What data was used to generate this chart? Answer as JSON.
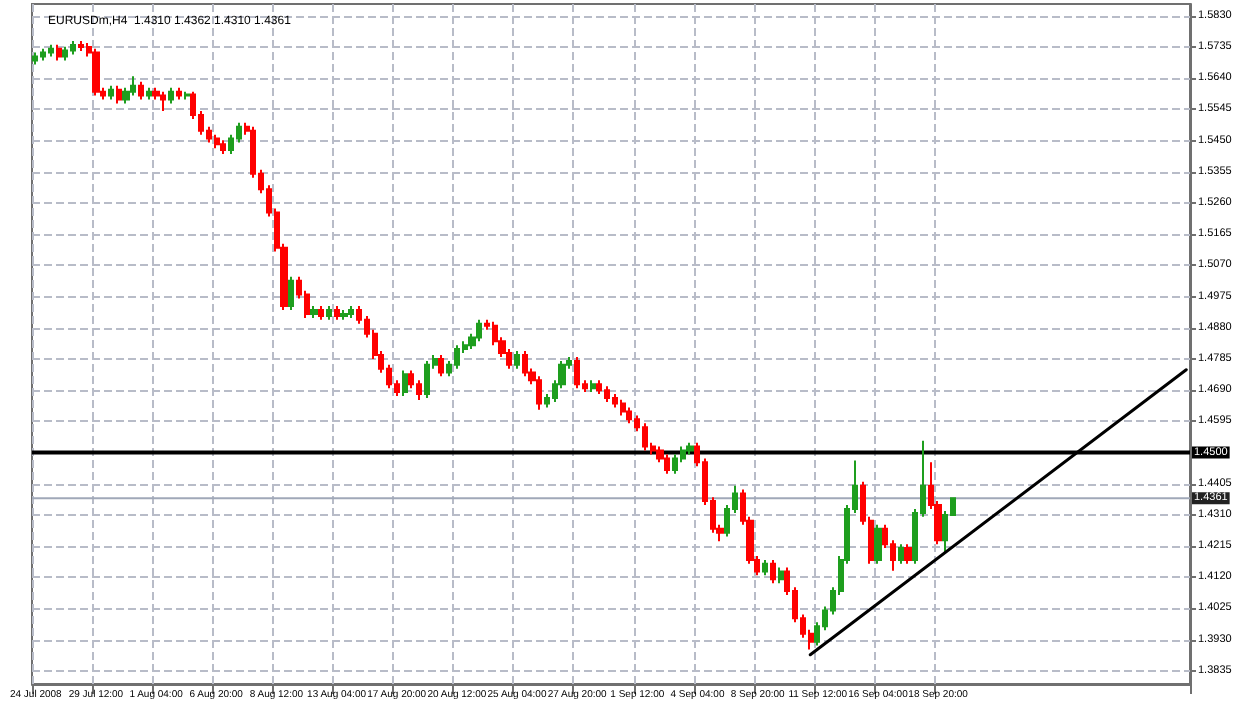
{
  "chart_data": {
    "type": "candlestick",
    "title": "EURUSDm,H4  1.4310 1.4362 1.4310 1.4361",
    "categories": [
      "24 Jul 2008",
      null,
      null,
      null,
      null,
      null,
      null,
      null,
      "29 Jul 12:00",
      null,
      null,
      null,
      null,
      null,
      null,
      null,
      "1 Aug 04:00",
      null,
      null,
      null,
      null,
      null,
      null,
      null,
      "6 Aug 20:00",
      null,
      null,
      null,
      null,
      null,
      null,
      null,
      "8 Aug 12:00",
      null,
      null,
      null,
      null,
      null,
      null,
      null,
      "13 Aug 04:00",
      null,
      null,
      null,
      null,
      null,
      null,
      null,
      "17 Aug 20:00",
      null,
      null,
      null,
      null,
      null,
      null,
      null,
      "20 Aug 12:00",
      null,
      null,
      null,
      null,
      null,
      null,
      null,
      "25 Aug 04:00",
      null,
      null,
      null,
      null,
      null,
      null,
      null,
      "27 Aug 20:00",
      null,
      null,
      null,
      null,
      null,
      null,
      null,
      "1 Sep 12:00",
      null,
      null,
      null,
      null,
      null,
      null,
      null,
      "4 Sep 04:00",
      null,
      null,
      null,
      null,
      null,
      null,
      null,
      "8 Sep 20:00",
      null,
      null,
      null,
      null,
      null,
      null,
      null,
      "11 Sep 12:00",
      null,
      null,
      null,
      null,
      null,
      null,
      null,
      "16 Sep 04:00",
      null,
      null,
      null,
      null,
      null,
      null,
      null,
      "18 Sep 20:00",
      null,
      null,
      null,
      null,
      null,
      null,
      null,
      null,
      null,
      null,
      null,
      null,
      null,
      null,
      null,
      null,
      null,
      null,
      null,
      null,
      null,
      null,
      null,
      null,
      null,
      null,
      null,
      null,
      null,
      null,
      null,
      null,
      null
    ],
    "colors": [
      "#1e9e1e",
      "#1e9e1e",
      "#1e9e1e",
      "#ff0000",
      "#1e9e1e",
      "#1e9e1e",
      "#ff0000",
      "#ff0000",
      "#ff0000",
      "#ff0000",
      "#1e9e1e",
      "#ff0000",
      "#1e9e1e",
      "#1e9e1e",
      "#ff0000",
      "#1e9e1e",
      "#ff0000",
      "#ff0000",
      "#1e9e1e",
      "#ff0000",
      "#1e9e1e",
      "#ff0000",
      "#ff0000",
      "#ff0000",
      "#ff0000",
      "#ff0000",
      "#1e9e1e",
      "#1e9e1e",
      "#ff0000",
      "#ff0000",
      "#ff0000",
      "#ff0000",
      "#ff0000",
      "#ff0000",
      "#1e9e1e",
      "#ff0000",
      "#ff0000",
      "#1e9e1e",
      "#ff0000",
      "#1e9e1e",
      "#ff0000",
      "#1e9e1e",
      "#1e9e1e",
      "#ff0000",
      "#ff0000",
      "#ff0000",
      "#ff0000",
      "#ff0000",
      "#ff0000",
      "#1e9e1e",
      "#ff0000",
      "#ff0000",
      "#1e9e1e",
      "#1e9e1e",
      "#ff0000",
      "#1e9e1e",
      "#1e9e1e",
      "#1e9e1e",
      "#1e9e1e",
      "#1e9e1e",
      "#ff0000",
      "#ff0000",
      "#ff0000",
      "#ff0000",
      "#1e9e1e",
      "#ff0000",
      "#ff0000",
      "#ff0000",
      "#1e9e1e",
      "#1e9e1e",
      "#1e9e1e",
      "#1e9e1e",
      "#ff0000",
      "#ff0000",
      "#1e9e1e",
      "#ff0000",
      "#ff0000",
      "#ff0000",
      "#ff0000",
      "#ff0000",
      "#ff0000",
      "#ff0000",
      "#ff0000",
      "#ff0000",
      "#ff0000",
      "#1e9e1e",
      "#1e9e1e",
      "#1e9e1e",
      "#ff0000",
      "#ff0000",
      "#ff0000",
      "#ff0000",
      "#1e9e1e",
      "#1e9e1e",
      "#ff0000",
      "#ff0000",
      "#ff0000",
      "#1e9e1e",
      "#ff0000",
      "#1e9e1e",
      "#ff0000",
      "#ff0000",
      "#ff0000",
      "#ff0000",
      "#1e9e1e",
      "#1e9e1e",
      "#1e9e1e",
      "#1e9e1e",
      "#1e9e1e",
      "#1e9e1e",
      "#ff0000",
      "#ff0000",
      "#1e9e1e",
      "#ff0000",
      "#ff0000",
      "#1e9e1e",
      "#ff0000",
      "#1e9e1e",
      "#1e9e1e",
      "#ff0000",
      "#ff0000",
      "#1e9e1e",
      "#1e9e1e",
      null,
      null,
      null,
      null,
      null,
      null,
      null,
      null,
      null,
      null,
      null,
      null,
      null,
      null,
      null,
      null,
      null,
      null,
      null,
      null,
      null,
      null,
      null,
      null,
      null,
      null,
      null,
      null,
      null,
      null,
      null
    ],
    "ohlc": [
      [
        1.5694,
        1.5718,
        1.5682,
        1.5706
      ],
      [
        1.5706,
        1.573,
        1.5694,
        1.5718
      ],
      [
        1.5718,
        1.5742,
        1.5706,
        1.573
      ],
      [
        1.573,
        1.5742,
        1.5694,
        1.5706
      ],
      [
        1.5706,
        1.5736,
        1.5694,
        1.5724
      ],
      [
        1.5724,
        1.5753,
        1.5712,
        1.5741
      ],
      [
        1.5741,
        1.5753,
        1.5723,
        1.5735
      ],
      [
        1.5735,
        1.5747,
        1.5706,
        1.5718
      ],
      [
        1.5718,
        1.573,
        1.5587,
        1.5599
      ],
      [
        1.5599,
        1.5611,
        1.5575,
        1.5587
      ],
      [
        1.5587,
        1.5617,
        1.5575,
        1.5605
      ],
      [
        1.5605,
        1.5617,
        1.5563,
        1.5575
      ],
      [
        1.5575,
        1.5611,
        1.5563,
        1.5599
      ],
      [
        1.5599,
        1.5646,
        1.5587,
        1.5617
      ],
      [
        1.5617,
        1.5629,
        1.5575,
        1.5587
      ],
      [
        1.5587,
        1.5611,
        1.5575,
        1.5599
      ],
      [
        1.5599,
        1.5611,
        1.5575,
        1.5587
      ],
      [
        1.5587,
        1.5599,
        1.554,
        1.5575
      ],
      [
        1.5575,
        1.5611,
        1.5563,
        1.5599
      ],
      [
        1.5599,
        1.5611,
        1.5575,
        1.5587
      ],
      [
        1.5587,
        1.5599,
        1.5575,
        1.559
      ],
      [
        1.559,
        1.5599,
        1.5516,
        1.5528
      ],
      [
        1.5528,
        1.554,
        1.5468,
        1.548
      ],
      [
        1.548,
        1.5492,
        1.5444,
        1.5456
      ],
      [
        1.5456,
        1.5468,
        1.5427,
        1.5439
      ],
      [
        1.5439,
        1.5451,
        1.5409,
        1.5421
      ],
      [
        1.5421,
        1.5468,
        1.5409,
        1.5456
      ],
      [
        1.5456,
        1.5504,
        1.5444,
        1.5492
      ],
      [
        1.5492,
        1.5504,
        1.5468,
        1.548
      ],
      [
        1.548,
        1.5492,
        1.5337,
        1.5349
      ],
      [
        1.5349,
        1.5361,
        1.529,
        1.5302
      ],
      [
        1.5302,
        1.5314,
        1.5219,
        1.5231
      ],
      [
        1.5231,
        1.5243,
        1.5112,
        1.5124
      ],
      [
        1.5124,
        1.5136,
        1.4934,
        1.4946
      ],
      [
        1.4946,
        1.5035,
        1.4934,
        1.5023
      ],
      [
        1.5023,
        1.5035,
        1.4969,
        1.4981
      ],
      [
        1.4981,
        1.4993,
        1.491,
        1.4922
      ],
      [
        1.4922,
        1.4946,
        1.491,
        1.4934
      ],
      [
        1.4934,
        1.4946,
        1.4904,
        1.4916
      ],
      [
        1.4916,
        1.4946,
        1.4904,
        1.4934
      ],
      [
        1.4934,
        1.4946,
        1.4904,
        1.4916
      ],
      [
        1.4916,
        1.4934,
        1.4904,
        1.4922
      ],
      [
        1.4922,
        1.4946,
        1.491,
        1.4934
      ],
      [
        1.4934,
        1.4946,
        1.4892,
        1.4904
      ],
      [
        1.4904,
        1.4916,
        1.485,
        1.4862
      ],
      [
        1.4862,
        1.4874,
        1.4785,
        1.4797
      ],
      [
        1.4797,
        1.4809,
        1.4743,
        1.4755
      ],
      [
        1.4755,
        1.4767,
        1.4696,
        1.4708
      ],
      [
        1.4708,
        1.472,
        1.4672,
        1.4684
      ],
      [
        1.4684,
        1.475,
        1.4672,
        1.4738
      ],
      [
        1.4738,
        1.475,
        1.4696,
        1.4708
      ],
      [
        1.4708,
        1.472,
        1.466,
        1.4678
      ],
      [
        1.4678,
        1.4779,
        1.4666,
        1.4767
      ],
      [
        1.4767,
        1.4797,
        1.4755,
        1.4785
      ],
      [
        1.4785,
        1.4797,
        1.4732,
        1.4744
      ],
      [
        1.4744,
        1.4779,
        1.4732,
        1.4767
      ],
      [
        1.4767,
        1.4827,
        1.4755,
        1.4815
      ],
      [
        1.4815,
        1.4839,
        1.4803,
        1.4827
      ],
      [
        1.4827,
        1.4862,
        1.4815,
        1.485
      ],
      [
        1.485,
        1.4904,
        1.4839,
        1.4892
      ],
      [
        1.4892,
        1.4904,
        1.4874,
        1.4886
      ],
      [
        1.4886,
        1.4898,
        1.4827,
        1.4839
      ],
      [
        1.4839,
        1.4851,
        1.4791,
        1.4803
      ],
      [
        1.4803,
        1.4815,
        1.4755,
        1.4767
      ],
      [
        1.4767,
        1.4809,
        1.4755,
        1.4797
      ],
      [
        1.4797,
        1.4809,
        1.4732,
        1.4744
      ],
      [
        1.4744,
        1.4756,
        1.4708,
        1.472
      ],
      [
        1.472,
        1.4732,
        1.463,
        1.4649
      ],
      [
        1.4649,
        1.4678,
        1.4637,
        1.4666
      ],
      [
        1.4666,
        1.472,
        1.4654,
        1.4708
      ],
      [
        1.4708,
        1.4779,
        1.4696,
        1.4767
      ],
      [
        1.4767,
        1.4791,
        1.4755,
        1.4779
      ],
      [
        1.4779,
        1.4791,
        1.4696,
        1.4708
      ],
      [
        1.4708,
        1.472,
        1.4684,
        1.4696
      ],
      [
        1.4696,
        1.472,
        1.4684,
        1.4708
      ],
      [
        1.4708,
        1.472,
        1.4678,
        1.469
      ],
      [
        1.469,
        1.4702,
        1.4654,
        1.4666
      ],
      [
        1.4666,
        1.4678,
        1.4637,
        1.4649
      ],
      [
        1.4649,
        1.4661,
        1.4613,
        1.4625
      ],
      [
        1.4625,
        1.4637,
        1.4589,
        1.4601
      ],
      [
        1.4601,
        1.4613,
        1.4565,
        1.4577
      ],
      [
        1.4577,
        1.4589,
        1.4506,
        1.4518
      ],
      [
        1.4518,
        1.453,
        1.4494,
        1.4506
      ],
      [
        1.4506,
        1.4518,
        1.447,
        1.4482
      ],
      [
        1.4482,
        1.4494,
        1.4435,
        1.4447
      ],
      [
        1.4447,
        1.4494,
        1.4435,
        1.4482
      ],
      [
        1.4482,
        1.4518,
        1.447,
        1.4506
      ],
      [
        1.4506,
        1.453,
        1.4494,
        1.4518
      ],
      [
        1.4518,
        1.453,
        1.4458,
        1.447
      ],
      [
        1.447,
        1.4482,
        1.434,
        1.4352
      ],
      [
        1.4352,
        1.4364,
        1.4256,
        1.4268
      ],
      [
        1.4268,
        1.428,
        1.423,
        1.4256
      ],
      [
        1.4256,
        1.434,
        1.4244,
        1.4328
      ],
      [
        1.4328,
        1.4399,
        1.4316,
        1.4375
      ],
      [
        1.4375,
        1.4387,
        1.428,
        1.4292
      ],
      [
        1.4292,
        1.4304,
        1.4161,
        1.4173
      ],
      [
        1.4173,
        1.4185,
        1.4126,
        1.4138
      ],
      [
        1.4138,
        1.4173,
        1.4126,
        1.4161
      ],
      [
        1.4161,
        1.4173,
        1.4102,
        1.4114
      ],
      [
        1.4114,
        1.415,
        1.4102,
        1.4138
      ],
      [
        1.4138,
        1.415,
        1.4066,
        1.4078
      ],
      [
        1.4078,
        1.409,
        1.3983,
        1.3995
      ],
      [
        1.3995,
        1.4007,
        1.3936,
        1.3948
      ],
      [
        1.3948,
        1.396,
        1.39,
        1.3924
      ],
      [
        1.3924,
        1.3983,
        1.3912,
        1.3971
      ],
      [
        1.3971,
        1.4031,
        1.3959,
        1.4019
      ],
      [
        1.4019,
        1.409,
        1.4007,
        1.4078
      ],
      [
        1.4078,
        1.4185,
        1.4066,
        1.4173
      ],
      [
        1.4173,
        1.434,
        1.4161,
        1.4328
      ],
      [
        1.4328,
        1.4476,
        1.4316,
        1.4399
      ],
      [
        1.4399,
        1.4411,
        1.428,
        1.4292
      ],
      [
        1.4292,
        1.4304,
        1.4161,
        1.4173
      ],
      [
        1.4173,
        1.428,
        1.4161,
        1.4268
      ],
      [
        1.4268,
        1.428,
        1.4209,
        1.4221
      ],
      [
        1.4221,
        1.4233,
        1.414,
        1.4173
      ],
      [
        1.4173,
        1.4221,
        1.4161,
        1.4209
      ],
      [
        1.4209,
        1.4221,
        1.4161,
        1.4173
      ],
      [
        1.4173,
        1.4328,
        1.4161,
        1.4316
      ],
      [
        1.4316,
        1.4536,
        1.4304,
        1.4399
      ],
      [
        1.4399,
        1.447,
        1.4328,
        1.434
      ],
      [
        1.434,
        1.4352,
        1.4221,
        1.4233
      ],
      [
        1.4233,
        1.4322,
        1.4197,
        1.431
      ],
      [
        1.431,
        1.4362,
        1.431,
        1.4361
      ],
      null,
      null,
      null,
      null,
      null,
      null,
      null,
      null,
      null,
      null,
      null,
      null,
      null,
      null,
      null,
      null,
      null,
      null,
      null,
      null,
      null,
      null,
      null,
      null,
      null,
      null,
      null,
      null,
      null,
      null,
      null
    ],
    "series": [
      {
        "type": "line",
        "color": "#000000",
        "values": [
          null,
          null,
          null,
          null,
          null,
          null,
          null,
          null,
          null,
          null,
          null,
          null,
          null,
          null,
          null,
          null,
          null,
          null,
          null,
          null,
          null,
          null,
          null,
          null,
          null,
          null,
          null,
          null,
          null,
          null,
          null,
          null,
          null,
          null,
          null,
          null,
          null,
          null,
          null,
          null,
          null,
          null,
          null,
          null,
          null,
          null,
          null,
          null,
          null,
          null,
          null,
          null,
          null,
          null,
          null,
          null,
          null,
          null,
          null,
          null,
          null,
          null,
          null,
          null,
          null,
          null,
          null,
          null,
          null,
          null,
          null,
          null,
          null,
          null,
          null,
          null,
          null,
          null,
          null,
          null,
          null,
          null,
          null,
          null,
          null,
          null,
          null,
          null,
          null,
          null,
          null,
          null,
          null,
          null,
          null,
          null,
          null,
          null,
          null,
          null,
          null,
          null,
          null,
          1.3884,
          null,
          null,
          null,
          null,
          null,
          null,
          null,
          null,
          null,
          null,
          null,
          null,
          null,
          null,
          null,
          null,
          null,
          null,
          null,
          null,
          null,
          null,
          null,
          null,
          null,
          null,
          null,
          null,
          null,
          null,
          null,
          null,
          null,
          null,
          null,
          null,
          null,
          null,
          null,
          null,
          null,
          null,
          null,
          null,
          null,
          null,
          null,
          null,
          null,
          1.4752
        ]
      }
    ],
    "ylim": [
      1.3795,
      1.5866
    ],
    "yticks": [
      {
        "value": 1.3835,
        "label": "1.3835"
      },
      {
        "value": 1.393,
        "label": "1.3930"
      },
      {
        "value": 1.4025,
        "label": "1.4025"
      },
      {
        "value": 1.412,
        "label": "1.4120"
      },
      {
        "value": 1.4215,
        "label": "1.4215"
      },
      {
        "value": 1.431,
        "label": "1.4310"
      },
      {
        "value": 1.4405,
        "label": "1.4405"
      },
      {
        "value": 1.4595,
        "label": "1.4595"
      },
      {
        "value": 1.469,
        "label": "1.4690"
      },
      {
        "value": 1.4785,
        "label": "1.4785"
      },
      {
        "value": 1.488,
        "label": "1.4880"
      },
      {
        "value": 1.4975,
        "label": "1.4975"
      },
      {
        "value": 1.507,
        "label": "1.5070"
      },
      {
        "value": 1.5165,
        "label": "1.5165"
      },
      {
        "value": 1.526,
        "label": "1.5260"
      },
      {
        "value": 1.5355,
        "label": "1.5355"
      },
      {
        "value": 1.545,
        "label": "1.5450"
      },
      {
        "value": 1.5545,
        "label": "1.5545"
      },
      {
        "value": 1.564,
        "label": "1.5640"
      },
      {
        "value": 1.5735,
        "label": "1.5735"
      },
      {
        "value": 1.583,
        "label": "1.5830"
      }
    ],
    "ref_lines": [
      {
        "axis": "y",
        "value": 1.45,
        "label": "1.4500",
        "color": "#000000"
      },
      {
        "axis": "y",
        "value": 1.4361,
        "label": "1.4361",
        "color": "#a0a8b8"
      }
    ],
    "grid": true,
    "line_style": "solid"
  }
}
